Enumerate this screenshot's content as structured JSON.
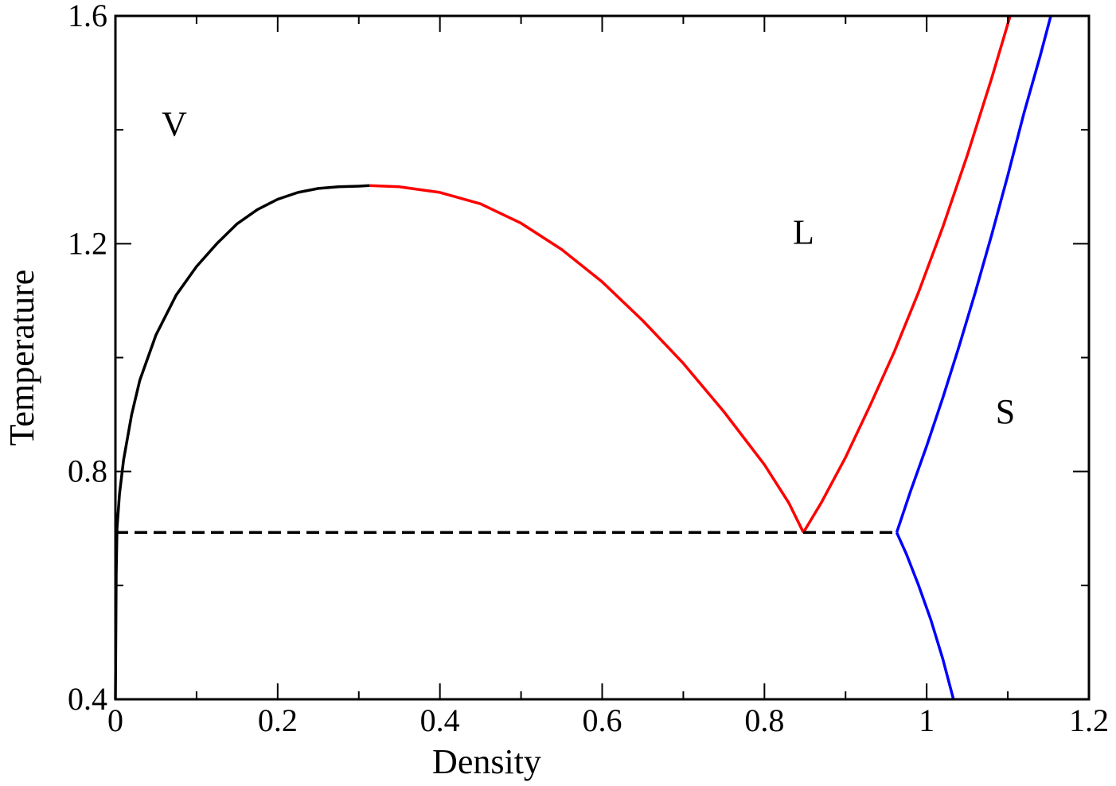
{
  "chart_data": {
    "type": "line",
    "title": "",
    "xlabel": "Density",
    "ylabel": "Temperature",
    "xlim": [
      0,
      1.2
    ],
    "ylim": [
      0.4,
      1.6
    ],
    "xticks": [
      0,
      0.2,
      0.4,
      0.6,
      0.8,
      1,
      1.2
    ],
    "xtick_labels": [
      "0",
      "0.2",
      "0.4",
      "0.6",
      "0.8",
      "1",
      "1.2"
    ],
    "yticks": [
      0.4,
      0.8,
      1.2,
      1.6
    ],
    "ytick_labels": [
      "0.4",
      "0.8",
      "1.2",
      "1.6"
    ],
    "grid": false,
    "annotations": [
      {
        "text": "V",
        "x": 0.057,
        "y": 1.39
      },
      {
        "text": "L",
        "x": 0.835,
        "y": 1.2
      },
      {
        "text": "S",
        "x": 1.085,
        "y": 0.885
      }
    ],
    "series": [
      {
        "color": "#000000",
        "dash": "solid",
        "points": [
          [
            0.0,
            0.4
          ],
          [
            0.001,
            0.62
          ],
          [
            0.002,
            0.7
          ],
          [
            0.005,
            0.76
          ],
          [
            0.01,
            0.82
          ],
          [
            0.02,
            0.9
          ],
          [
            0.03,
            0.96
          ],
          [
            0.05,
            1.04
          ],
          [
            0.075,
            1.11
          ],
          [
            0.1,
            1.16
          ],
          [
            0.125,
            1.2
          ],
          [
            0.15,
            1.235
          ],
          [
            0.175,
            1.26
          ],
          [
            0.2,
            1.278
          ],
          [
            0.225,
            1.29
          ],
          [
            0.25,
            1.297
          ],
          [
            0.275,
            1.3
          ],
          [
            0.3,
            1.301
          ],
          [
            0.313,
            1.302
          ]
        ]
      },
      {
        "color": "#ff0000",
        "dash": "solid",
        "points": [
          [
            0.313,
            1.302
          ],
          [
            0.35,
            1.3
          ],
          [
            0.4,
            1.29
          ],
          [
            0.45,
            1.27
          ],
          [
            0.5,
            1.236
          ],
          [
            0.55,
            1.19
          ],
          [
            0.6,
            1.133
          ],
          [
            0.65,
            1.065
          ],
          [
            0.7,
            0.99
          ],
          [
            0.75,
            0.905
          ],
          [
            0.8,
            0.812
          ],
          [
            0.83,
            0.745
          ],
          [
            0.848,
            0.693
          ]
        ]
      },
      {
        "color": "#ff0000",
        "dash": "solid",
        "points": [
          [
            0.848,
            0.693
          ],
          [
            0.87,
            0.745
          ],
          [
            0.9,
            0.825
          ],
          [
            0.93,
            0.915
          ],
          [
            0.96,
            1.01
          ],
          [
            0.99,
            1.115
          ],
          [
            1.02,
            1.23
          ],
          [
            1.05,
            1.355
          ],
          [
            1.08,
            1.49
          ],
          [
            1.103,
            1.6
          ]
        ]
      },
      {
        "color": "#0000ff",
        "dash": "solid",
        "points": [
          [
            0.963,
            0.693
          ],
          [
            0.98,
            0.765
          ],
          [
            1.0,
            0.845
          ],
          [
            1.02,
            0.93
          ],
          [
            1.04,
            1.02
          ],
          [
            1.06,
            1.115
          ],
          [
            1.08,
            1.215
          ],
          [
            1.1,
            1.32
          ],
          [
            1.12,
            1.43
          ],
          [
            1.14,
            1.53
          ],
          [
            1.153,
            1.6
          ]
        ]
      },
      {
        "color": "#0000ff",
        "dash": "solid",
        "points": [
          [
            0.963,
            0.693
          ],
          [
            0.975,
            0.655
          ],
          [
            0.99,
            0.6
          ],
          [
            1.005,
            0.54
          ],
          [
            1.02,
            0.47
          ],
          [
            1.033,
            0.4
          ]
        ]
      },
      {
        "color": "#000000",
        "dash": "dashed",
        "points": [
          [
            0.0,
            0.693
          ],
          [
            0.963,
            0.693
          ]
        ]
      }
    ]
  }
}
